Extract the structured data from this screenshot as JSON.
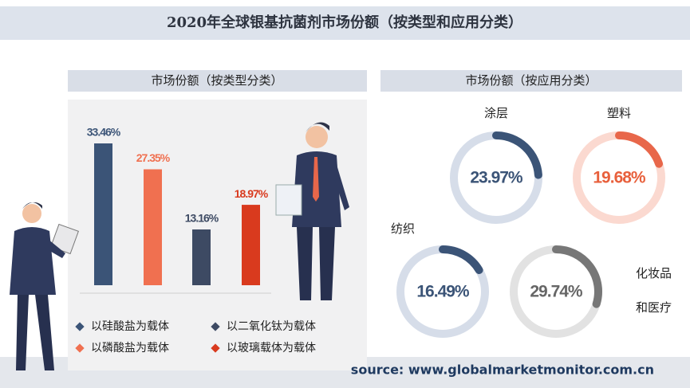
{
  "title": "2020年全球银基抗菌剂市场份额（按类型和应用分类）",
  "source": "source: www.globalmarketmonitor.com.cn",
  "chart_data": [
    {
      "type": "bar",
      "title": "市场份额（按类型分类）",
      "categories": [
        "以硅酸盐为载体",
        "以磷酸盐为载体",
        "以二氧化钛为载体",
        "以玻璃载体为载体"
      ],
      "values": [
        33.46,
        27.35,
        13.16,
        18.97
      ],
      "value_labels": [
        "33.46%",
        "27.35%",
        "13.16%",
        "18.97%"
      ],
      "colors": [
        "#3b5477",
        "#f07050",
        "#3d4a63",
        "#d93a1e"
      ]
    },
    {
      "type": "donut",
      "title": "市场份额（按应用分类）",
      "categories": [
        "涂层",
        "塑料",
        "纺织",
        "化妆品和医疗"
      ],
      "values": [
        23.97,
        19.68,
        16.49,
        29.74
      ],
      "value_labels": [
        "23.97%",
        "19.68%",
        "16.49%",
        "29.74%"
      ],
      "colors": [
        "#3b5477",
        "#e8674a",
        "#3b5477",
        "#777777"
      ],
      "track_colors": [
        "#d6dde9",
        "#fbd9d0",
        "#d6dde9",
        "#e2e2e2"
      ]
    }
  ]
}
